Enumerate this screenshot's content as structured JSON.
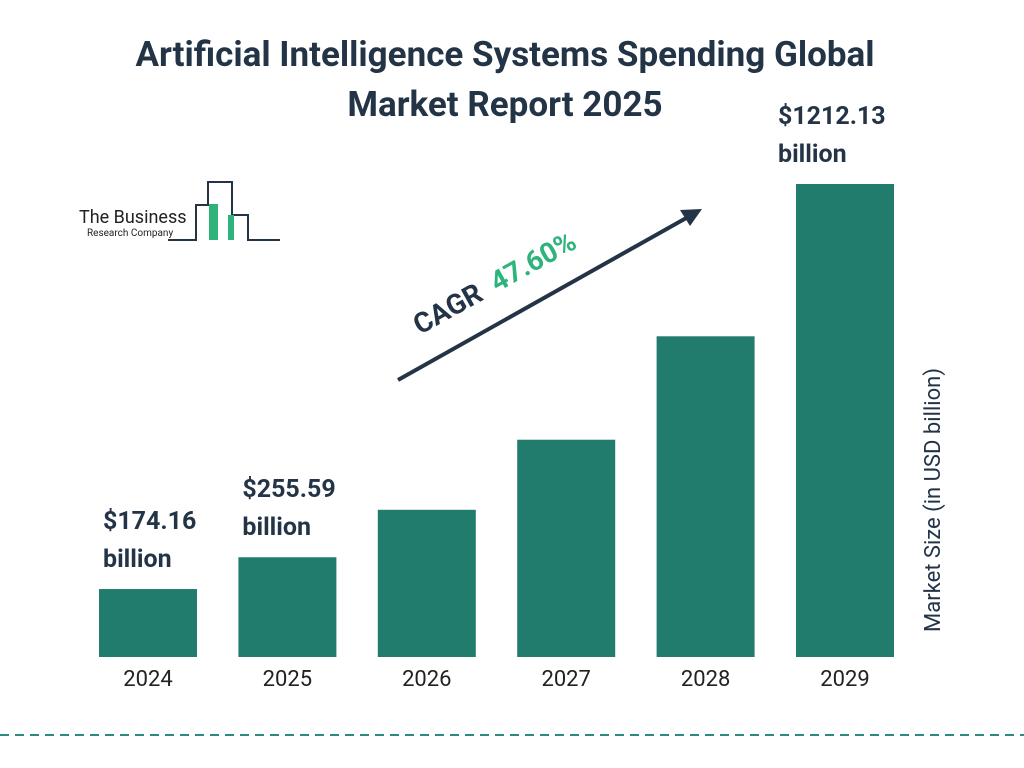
{
  "chart_data": {
    "type": "bar",
    "title": "Artificial Intelligence Systems Spending Global Market Report 2025",
    "categories": [
      "2024",
      "2025",
      "2026",
      "2027",
      "2028",
      "2029"
    ],
    "values": [
      174.16,
      255.59,
      377.25,
      556.82,
      821.87,
      1212.13
    ],
    "value_labels": [
      "$174.16 billion",
      "$255.59 billion",
      null,
      null,
      null,
      "$1212.13 billion"
    ],
    "color": "#217c6d",
    "y_axis_label": "Market Size (in USD billion)",
    "cagr_label": "CAGR",
    "cagr_value": "47.60%"
  },
  "logo": {
    "line1": "The Business",
    "line2": "Research Company"
  }
}
